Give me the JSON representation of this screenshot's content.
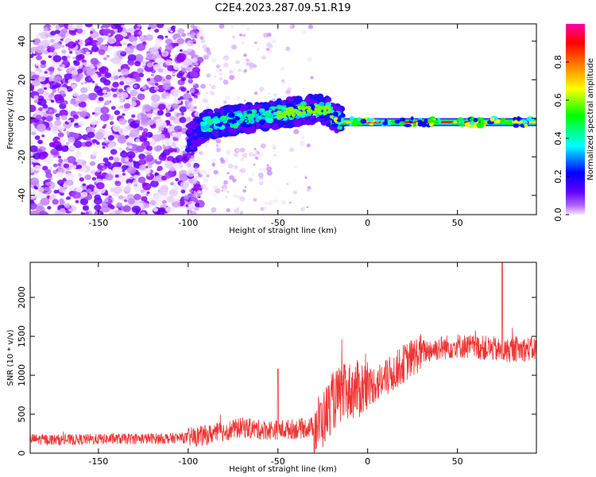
{
  "title": "C2E4.2023.287.09.51.R19",
  "chart_data": [
    {
      "type": "heatmap",
      "xlabel": "Height of straight line (km)",
      "ylabel": "Frequency (Hz)",
      "xlim": [
        -188,
        94
      ],
      "ylim": [
        -50,
        49
      ],
      "xticks": [
        -150,
        -100,
        -50,
        0,
        50
      ],
      "yticks": [
        -40,
        -20,
        0,
        20,
        40
      ],
      "colorbar": {
        "label": "Normalized spectral amplitude",
        "range": [
          0,
          1
        ],
        "ticks": [
          0.0,
          0.2,
          0.4,
          0.6,
          0.8
        ],
        "colormap": [
          "#f5e6ff",
          "#8a00ff",
          "#0000ff",
          "#00ffff",
          "#00ff00",
          "#ffff00",
          "#ff8000",
          "#ff0000",
          "#ff00ff"
        ]
      },
      "ridge": {
        "description_points": [
          [
            -100,
            -11
          ],
          [
            -90,
            -3
          ],
          [
            -75,
            -1
          ],
          [
            -60,
            1
          ],
          [
            -45,
            3
          ],
          [
            -30,
            5
          ],
          [
            -22,
            4
          ],
          [
            -15,
            -2
          ],
          [
            0,
            -2
          ],
          [
            50,
            -2
          ],
          [
            92,
            -2
          ]
        ],
        "peak_region_x": [
          -5,
          60
        ]
      }
    },
    {
      "type": "line",
      "xlabel": "Height of straight line (km)",
      "ylabel": "SNR (10 * v/v)",
      "xlim": [
        -188,
        94
      ],
      "ylim": [
        0,
        2450
      ],
      "xticks": [
        -150,
        -100,
        -50,
        0,
        50
      ],
      "yticks": [
        0,
        500,
        1000,
        1500,
        2000
      ],
      "color": "#ee3333",
      "series": [
        {
          "x": [
            -188,
            -170,
            -150,
            -130,
            -110,
            -100,
            -90,
            -80,
            -70,
            -60,
            -50,
            -40,
            -30,
            -25,
            -20,
            -15,
            -10,
            -5,
            0,
            10,
            20,
            30,
            40,
            50,
            60,
            70,
            75,
            80,
            94
          ],
          "y": [
            180,
            170,
            180,
            185,
            190,
            200,
            230,
            280,
            330,
            300,
            300,
            310,
            340,
            420,
            650,
            750,
            800,
            820,
            850,
            950,
            1150,
            1300,
            1350,
            1380,
            1360,
            1340,
            1300,
            1330,
            1340
          ]
        }
      ],
      "annotations": {
        "spike": {
          "x": 75,
          "y": 2450
        },
        "spike2": {
          "x": -50,
          "y": 1080
        }
      }
    }
  ]
}
